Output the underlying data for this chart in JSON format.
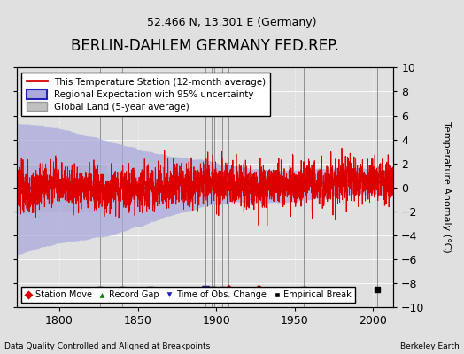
{
  "title": "BERLIN-DAHLEM GERMANY FED.REP.",
  "subtitle": "52.466 N, 13.301 E (Germany)",
  "xlabel_left": "Data Quality Controlled and Aligned at Breakpoints",
  "xlabel_right": "Berkeley Earth",
  "ylabel": "Temperature Anomaly (°C)",
  "xlim": [
    1773,
    2013
  ],
  "ylim": [
    -10,
    10
  ],
  "yticks": [
    -10,
    -8,
    -6,
    -4,
    -2,
    0,
    2,
    4,
    6,
    8,
    10
  ],
  "xticks": [
    1800,
    1850,
    1900,
    1950,
    2000
  ],
  "background_color": "#e0e0e0",
  "plot_bg_color": "#e0e0e0",
  "title_fontsize": 12,
  "subtitle_fontsize": 9,
  "red_line_color": "#dd0000",
  "blue_line_color": "#2222bb",
  "blue_fill_color": "#aaaadd",
  "gray_fill_color": "#c0c0c0",
  "gray_line_color": "#999999",
  "marker_events": {
    "station_move": [
      1908,
      1927
    ],
    "record_gap": [],
    "time_obs_change": [
      1893
    ],
    "empirical_break": [
      1826,
      1840,
      1858,
      1893,
      1897,
      1899,
      1904,
      1908,
      1927,
      1956,
      2003
    ]
  },
  "vline_years": [
    1826,
    1840,
    1858,
    1893,
    1897,
    1899,
    1904,
    1908,
    1927,
    1956,
    2003
  ],
  "seed": 42
}
